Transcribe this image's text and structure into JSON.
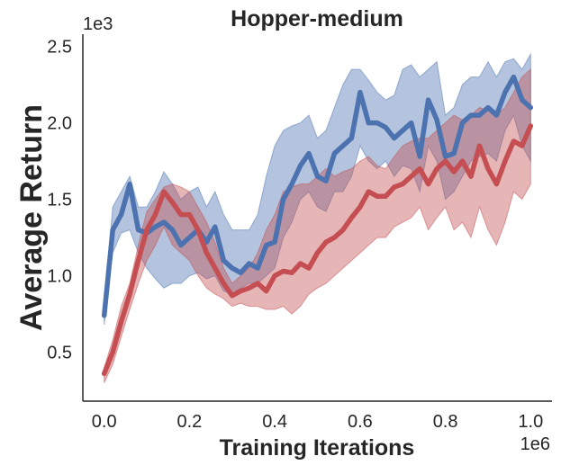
{
  "chart_data": {
    "type": "line",
    "title": "Hopper-medium",
    "xlabel": "Training Iterations",
    "ylabel": "Average Return",
    "x_multiplier_label": "1e6",
    "y_multiplier_label": "1e3",
    "xlim": [
      -0.05,
      1.05
    ],
    "ylim": [
      0.18,
      2.58
    ],
    "x_ticks": [
      0.0,
      0.2,
      0.4,
      0.6,
      0.8,
      1.0
    ],
    "x_tick_labels": [
      "0.0",
      "0.2",
      "0.4",
      "0.6",
      "0.8",
      "1.0"
    ],
    "y_ticks": [
      0.5,
      1.0,
      1.5,
      2.0,
      2.5
    ],
    "y_tick_labels": [
      "0.5",
      "1.0",
      "1.5",
      "2.0",
      "2.5"
    ],
    "grid": false,
    "legend": "none",
    "x": [
      0.0,
      0.02,
      0.04,
      0.06,
      0.08,
      0.1,
      0.12,
      0.14,
      0.16,
      0.18,
      0.2,
      0.22,
      0.24,
      0.26,
      0.28,
      0.3,
      0.32,
      0.34,
      0.36,
      0.38,
      0.4,
      0.42,
      0.44,
      0.46,
      0.48,
      0.5,
      0.52,
      0.54,
      0.56,
      0.58,
      0.6,
      0.62,
      0.64,
      0.66,
      0.68,
      0.7,
      0.72,
      0.74,
      0.76,
      0.78,
      0.8,
      0.82,
      0.84,
      0.86,
      0.88,
      0.9,
      0.92,
      0.94,
      0.96,
      0.98,
      1.0
    ],
    "series": [
      {
        "color": "#4c72b0",
        "values": [
          0.74,
          1.3,
          1.4,
          1.6,
          1.3,
          1.28,
          1.32,
          1.35,
          1.3,
          1.2,
          1.25,
          1.3,
          1.22,
          1.32,
          1.1,
          1.05,
          1.02,
          1.08,
          1.05,
          1.2,
          1.22,
          1.5,
          1.6,
          1.72,
          1.8,
          1.65,
          1.62,
          1.8,
          1.85,
          1.9,
          2.2,
          2.0,
          2.0,
          1.97,
          1.9,
          1.95,
          2.0,
          1.78,
          2.15,
          2.02,
          1.78,
          1.8,
          2.0,
          2.05,
          2.05,
          2.1,
          2.05,
          2.2,
          2.3,
          2.15,
          2.1
        ],
        "upper": [
          0.8,
          1.45,
          1.55,
          1.65,
          1.45,
          1.45,
          1.55,
          1.68,
          1.6,
          1.5,
          1.55,
          1.58,
          1.45,
          1.55,
          1.4,
          1.3,
          1.3,
          1.3,
          1.4,
          1.65,
          1.85,
          1.95,
          1.98,
          2.0,
          2.05,
          1.9,
          1.95,
          2.1,
          2.25,
          2.35,
          2.35,
          2.28,
          2.2,
          2.15,
          2.18,
          2.35,
          2.38,
          2.3,
          2.35,
          2.4,
          2.05,
          2.1,
          2.25,
          2.3,
          2.3,
          2.4,
          2.3,
          2.4,
          2.42,
          2.35,
          2.45
        ],
        "lower": [
          0.68,
          1.15,
          1.28,
          1.3,
          1.15,
          1.05,
          0.98,
          0.92,
          0.95,
          0.95,
          1.0,
          1.02,
          0.98,
          1.0,
          0.9,
          0.88,
          0.92,
          0.95,
          0.95,
          1.0,
          1.05,
          1.25,
          1.35,
          1.5,
          1.55,
          1.45,
          1.42,
          1.55,
          1.55,
          1.65,
          1.85,
          1.75,
          1.7,
          1.75,
          1.65,
          1.72,
          1.7,
          1.55,
          1.85,
          1.75,
          1.5,
          1.55,
          1.65,
          1.75,
          1.78,
          1.8,
          1.75,
          1.95,
          2.05,
          1.85,
          1.75
        ]
      },
      {
        "color": "#c44e52",
        "values": [
          0.36,
          0.5,
          0.7,
          0.88,
          1.1,
          1.3,
          1.4,
          1.55,
          1.48,
          1.4,
          1.4,
          1.3,
          1.15,
          1.05,
          0.95,
          0.87,
          0.9,
          0.92,
          0.95,
          0.9,
          1.0,
          1.03,
          1.02,
          1.08,
          1.05,
          1.15,
          1.22,
          1.25,
          1.3,
          1.38,
          1.45,
          1.55,
          1.52,
          1.52,
          1.58,
          1.6,
          1.65,
          1.7,
          1.6,
          1.7,
          1.75,
          1.68,
          1.75,
          1.65,
          1.85,
          1.7,
          1.6,
          1.75,
          1.88,
          1.85,
          1.98
        ],
        "upper": [
          0.4,
          0.58,
          0.8,
          0.95,
          1.2,
          1.42,
          1.5,
          1.58,
          1.6,
          1.58,
          1.55,
          1.45,
          1.35,
          1.22,
          1.05,
          0.95,
          1.0,
          1.05,
          1.15,
          1.3,
          1.4,
          1.55,
          1.58,
          1.6,
          1.6,
          1.65,
          1.7,
          1.65,
          1.68,
          1.7,
          1.75,
          1.78,
          1.72,
          1.7,
          1.78,
          1.85,
          1.88,
          1.9,
          1.9,
          1.95,
          2.0,
          2.05,
          2.02,
          2.05,
          2.1,
          2.08,
          2.05,
          2.1,
          2.2,
          2.3,
          2.35
        ],
        "lower": [
          0.3,
          0.42,
          0.6,
          0.78,
          0.95,
          1.1,
          1.2,
          1.32,
          1.2,
          1.15,
          1.1,
          1.0,
          0.92,
          0.88,
          0.85,
          0.8,
          0.82,
          0.8,
          0.8,
          0.78,
          0.78,
          0.8,
          0.75,
          0.8,
          0.88,
          0.92,
          0.95,
          1.0,
          1.05,
          1.1,
          1.15,
          1.2,
          1.25,
          1.25,
          1.32,
          1.35,
          1.38,
          1.45,
          1.3,
          1.38,
          1.45,
          1.3,
          1.35,
          1.25,
          1.45,
          1.3,
          1.2,
          1.35,
          1.55,
          1.5,
          1.6
        ]
      }
    ]
  }
}
